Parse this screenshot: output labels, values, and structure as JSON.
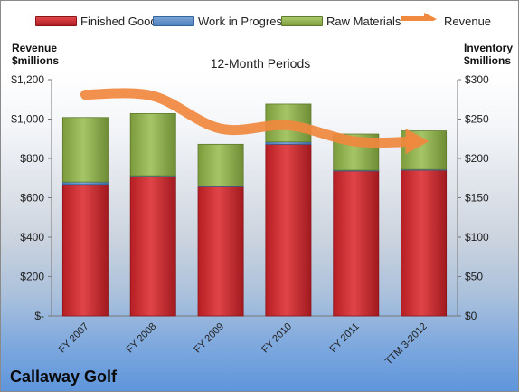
{
  "legend": {
    "finished_goods": "Finished Goods",
    "wip": "Work in Progress",
    "raw_materials": "Raw Materials",
    "revenue": "Revenue"
  },
  "axes": {
    "left_title_1": "Revenue",
    "left_title_2": "$millions",
    "right_title_1": "Inventory",
    "right_title_2": "$millions"
  },
  "title": "12-Month Periods",
  "company": "Callaway Golf",
  "colors": {
    "finished_goods": "#c0292d",
    "wip": "#4f81bd",
    "raw_materials": "#8fb24a",
    "revenue": "#f0883e"
  },
  "chart_data": {
    "type": "bar",
    "stacked": true,
    "categories": [
      "FY 2007",
      "FY 2008",
      "FY 2009",
      "FY 2010",
      "FY 2011",
      "TTM 3-2012"
    ],
    "series": [
      {
        "name": "Finished Goods",
        "axis": "right",
        "values": [
          167,
          177,
          164,
          218,
          184,
          185
        ]
      },
      {
        "name": "Work in Progress",
        "axis": "right",
        "values": [
          3,
          1,
          1,
          3,
          1,
          1
        ]
      },
      {
        "name": "Raw Materials",
        "axis": "right",
        "values": [
          82,
          79,
          53,
          48,
          46,
          49
        ]
      },
      {
        "name": "Revenue",
        "type": "line",
        "axis": "left",
        "values": [
          1124,
          1117,
          951,
          968,
          886,
          887
        ]
      }
    ],
    "left_axis": {
      "ylim": [
        0,
        1200
      ],
      "ticks": [
        "$-",
        "$200",
        "$400",
        "$600",
        "$800",
        "$1,000",
        "$1,200"
      ]
    },
    "right_axis": {
      "ylim": [
        0,
        300
      ],
      "ticks": [
        "$0",
        "$50",
        "$100",
        "$150",
        "$200",
        "$250",
        "$300"
      ]
    },
    "legend_position": "top",
    "grid": false
  }
}
